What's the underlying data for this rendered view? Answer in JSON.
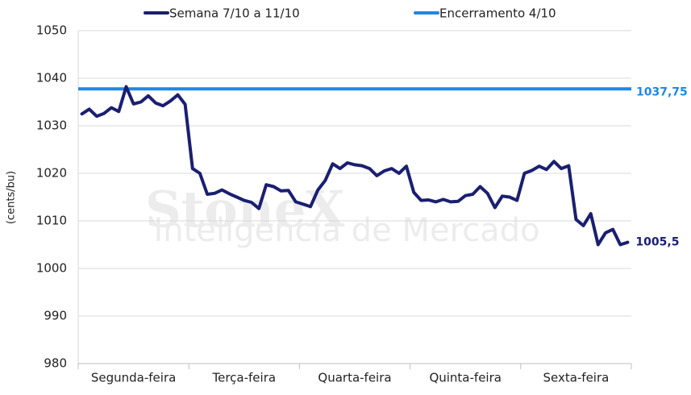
{
  "chart_data": {
    "type": "line",
    "watermark": [
      "StoneX",
      "Inteligência de Mercado"
    ],
    "y_label": "(cents/bu)",
    "categories": [
      null,
      null,
      null,
      null,
      null,
      null,
      null,
      "Segunda-feira",
      null,
      null,
      null,
      null,
      null,
      null,
      null,
      null,
      null,
      null,
      null,
      null,
      null,
      null,
      "Terça-feira",
      null,
      null,
      null,
      null,
      null,
      null,
      null,
      null,
      null,
      null,
      null,
      null,
      null,
      null,
      "Quarta-feira",
      null,
      null,
      null,
      null,
      null,
      null,
      null,
      null,
      null,
      null,
      null,
      null,
      null,
      null,
      "Quinta-feira",
      null,
      null,
      null,
      null,
      null,
      null,
      null,
      null,
      null,
      null,
      null,
      null,
      null,
      null,
      "Sexta-feira",
      null,
      null,
      null,
      null,
      null,
      null,
      null
    ],
    "series": [
      {
        "name": "Semana 7/10 a 11/10",
        "color": "#1a1f71",
        "end_label": "1005,5",
        "values": [
          1032.5,
          1033.5,
          1032,
          1032.6,
          1033.8,
          1033,
          1038.2,
          1034.6,
          1035,
          1036.3,
          1034.8,
          1034.2,
          1035.2,
          1036.5,
          1034.5,
          1021,
          1020,
          1015.6,
          1015.8,
          1016.5,
          1015.7,
          1015,
          1014.3,
          1013.9,
          1012.6,
          1017.6,
          1017.2,
          1016.3,
          1016.4,
          1014,
          1013.5,
          1013,
          1016.5,
          1018.5,
          1022,
          1021,
          1022.2,
          1021.8,
          1021.6,
          1021,
          1019.5,
          1020.5,
          1021,
          1020,
          1021.5,
          1016,
          1014.3,
          1014.4,
          1014,
          1014.5,
          1014,
          1014.1,
          1015.3,
          1015.6,
          1017.2,
          1015.8,
          1012.8,
          1015.2,
          1015,
          1014.3,
          1020,
          1020.6,
          1021.5,
          1020.8,
          1022.5,
          1021,
          1021.6,
          1010.3,
          1009,
          1011.5,
          1005,
          1007.5,
          1008.2,
          1005,
          1005.5
        ]
      }
    ],
    "reference_lines": [
      {
        "name": "Encerramento 4/10",
        "color": "#1e88e5",
        "value": 1037.75,
        "label": "1037,75"
      }
    ],
    "ylim": [
      980,
      1050
    ],
    "yticks": [
      980,
      990,
      1000,
      1010,
      1020,
      1030,
      1040,
      1050
    ],
    "grid": true
  }
}
